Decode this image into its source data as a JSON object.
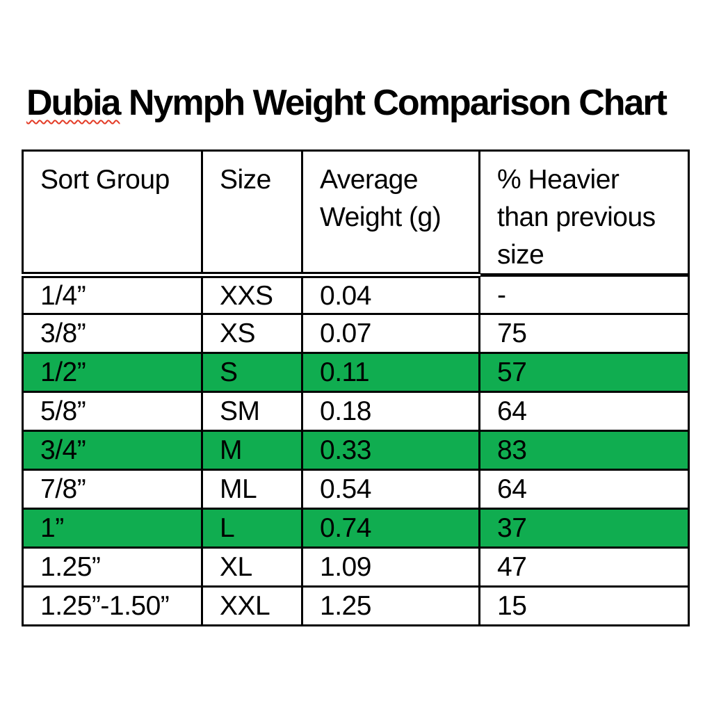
{
  "title": {
    "word_underlined": "Dubia",
    "rest": " Nymph Weight Comparison Chart"
  },
  "table": {
    "headers": {
      "sort_group": "Sort Group",
      "size": "Size",
      "avg_weight": "Average\nWeight (g)",
      "pct_heavier": "% Heavier\nthan previous\nsize"
    },
    "rows": [
      {
        "sort_group": "1/4”",
        "size": "XXS",
        "avg_weight": "0.04",
        "pct_heavier": "-",
        "highlight": false
      },
      {
        "sort_group": "3/8”",
        "size": "XS",
        "avg_weight": "0.07",
        "pct_heavier": "75",
        "highlight": false
      },
      {
        "sort_group": "1/2”",
        "size": "S",
        "avg_weight": "0.11",
        "pct_heavier": "57",
        "highlight": true
      },
      {
        "sort_group": "5/8”",
        "size": "SM",
        "avg_weight": "0.18",
        "pct_heavier": "64",
        "highlight": false
      },
      {
        "sort_group": "3/4”",
        "size": "M",
        "avg_weight": "0.33",
        "pct_heavier": "83",
        "highlight": true
      },
      {
        "sort_group": "7/8”",
        "size": "ML",
        "avg_weight": "0.54",
        "pct_heavier": "64",
        "highlight": false
      },
      {
        "sort_group": "1”",
        "size": "L",
        "avg_weight": "0.74",
        "pct_heavier": "37",
        "highlight": true
      },
      {
        "sort_group": "1.25”",
        "size": "XL",
        "avg_weight": "1.09",
        "pct_heavier": "47",
        "highlight": false
      },
      {
        "sort_group": "1.25”-1.50”",
        "size": "XXL",
        "avg_weight": "1.25",
        "pct_heavier": "15",
        "highlight": false
      }
    ]
  },
  "colors": {
    "highlight_green": "#10ad50",
    "squiggle_red": "#e33b26",
    "border_black": "#000000",
    "background": "#ffffff"
  }
}
